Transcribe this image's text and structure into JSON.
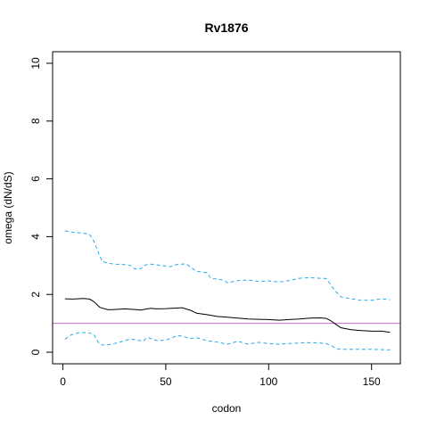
{
  "chart_data": {
    "type": "line",
    "title": "Rv1876",
    "xlabel": "codon",
    "ylabel": "omega (dN/dS)",
    "xlim": [
      -5,
      164
    ],
    "ylim": [
      -0.4,
      10.4
    ],
    "x_ticks": [
      0,
      50,
      100,
      150
    ],
    "y_ticks": [
      0,
      2,
      4,
      6,
      8,
      10
    ],
    "reference_line": {
      "y": 1,
      "color": "#cc66cc"
    },
    "series": [
      {
        "style": "solid",
        "color": "#000000",
        "points": [
          [
            1,
            1.85
          ],
          [
            5,
            1.84
          ],
          [
            10,
            1.86
          ],
          [
            13,
            1.84
          ],
          [
            15,
            1.75
          ],
          [
            18,
            1.55
          ],
          [
            22,
            1.47
          ],
          [
            25,
            1.48
          ],
          [
            30,
            1.5
          ],
          [
            35,
            1.48
          ],
          [
            38,
            1.46
          ],
          [
            40,
            1.49
          ],
          [
            43,
            1.52
          ],
          [
            45,
            1.5
          ],
          [
            50,
            1.51
          ],
          [
            55,
            1.53
          ],
          [
            58,
            1.54
          ],
          [
            62,
            1.45
          ],
          [
            65,
            1.35
          ],
          [
            70,
            1.3
          ],
          [
            75,
            1.24
          ],
          [
            80,
            1.21
          ],
          [
            85,
            1.18
          ],
          [
            90,
            1.15
          ],
          [
            95,
            1.14
          ],
          [
            100,
            1.13
          ],
          [
            105,
            1.11
          ],
          [
            110,
            1.13
          ],
          [
            115,
            1.15
          ],
          [
            120,
            1.18
          ],
          [
            125,
            1.19
          ],
          [
            128,
            1.17
          ],
          [
            130,
            1.1
          ],
          [
            133,
            0.95
          ],
          [
            135,
            0.85
          ],
          [
            140,
            0.78
          ],
          [
            145,
            0.75
          ],
          [
            150,
            0.73
          ],
          [
            155,
            0.73
          ],
          [
            159,
            0.69
          ]
        ]
      },
      {
        "style": "dashed",
        "color": "#2aa9e8",
        "points": [
          [
            1,
            4.2
          ],
          [
            5,
            4.15
          ],
          [
            10,
            4.12
          ],
          [
            13,
            4.08
          ],
          [
            15,
            3.85
          ],
          [
            17,
            3.5
          ],
          [
            19,
            3.15
          ],
          [
            22,
            3.08
          ],
          [
            25,
            3.05
          ],
          [
            30,
            3.03
          ],
          [
            33,
            3.0
          ],
          [
            35,
            2.88
          ],
          [
            38,
            2.9
          ],
          [
            40,
            3.02
          ],
          [
            43,
            3.05
          ],
          [
            48,
            3.0
          ],
          [
            52,
            2.96
          ],
          [
            55,
            3.03
          ],
          [
            60,
            3.06
          ],
          [
            62,
            2.95
          ],
          [
            65,
            2.8
          ],
          [
            70,
            2.75
          ],
          [
            72,
            2.55
          ],
          [
            75,
            2.53
          ],
          [
            78,
            2.5
          ],
          [
            80,
            2.4
          ],
          [
            85,
            2.48
          ],
          [
            90,
            2.5
          ],
          [
            95,
            2.45
          ],
          [
            100,
            2.47
          ],
          [
            105,
            2.43
          ],
          [
            110,
            2.48
          ],
          [
            115,
            2.56
          ],
          [
            120,
            2.58
          ],
          [
            125,
            2.56
          ],
          [
            128,
            2.55
          ],
          [
            130,
            2.35
          ],
          [
            132,
            2.15
          ],
          [
            135,
            1.92
          ],
          [
            140,
            1.85
          ],
          [
            145,
            1.8
          ],
          [
            150,
            1.8
          ],
          [
            155,
            1.85
          ],
          [
            159,
            1.82
          ]
        ]
      },
      {
        "style": "dashed",
        "color": "#2aa9e8",
        "points": [
          [
            1,
            0.45
          ],
          [
            4,
            0.6
          ],
          [
            8,
            0.68
          ],
          [
            12,
            0.68
          ],
          [
            15,
            0.62
          ],
          [
            17,
            0.35
          ],
          [
            19,
            0.25
          ],
          [
            22,
            0.26
          ],
          [
            25,
            0.3
          ],
          [
            30,
            0.4
          ],
          [
            33,
            0.46
          ],
          [
            36,
            0.42
          ],
          [
            39,
            0.38
          ],
          [
            41,
            0.52
          ],
          [
            43,
            0.46
          ],
          [
            46,
            0.4
          ],
          [
            50,
            0.42
          ],
          [
            53,
            0.5
          ],
          [
            56,
            0.58
          ],
          [
            58,
            0.55
          ],
          [
            62,
            0.48
          ],
          [
            65,
            0.5
          ],
          [
            70,
            0.4
          ],
          [
            75,
            0.35
          ],
          [
            80,
            0.28
          ],
          [
            85,
            0.38
          ],
          [
            90,
            0.28
          ],
          [
            95,
            0.34
          ],
          [
            100,
            0.3
          ],
          [
            105,
            0.28
          ],
          [
            110,
            0.3
          ],
          [
            115,
            0.32
          ],
          [
            120,
            0.33
          ],
          [
            125,
            0.32
          ],
          [
            128,
            0.3
          ],
          [
            130,
            0.24
          ],
          [
            133,
            0.12
          ],
          [
            135,
            0.1
          ],
          [
            140,
            0.1
          ],
          [
            145,
            0.1
          ],
          [
            150,
            0.1
          ],
          [
            155,
            0.09
          ],
          [
            159,
            0.08
          ]
        ]
      }
    ]
  }
}
